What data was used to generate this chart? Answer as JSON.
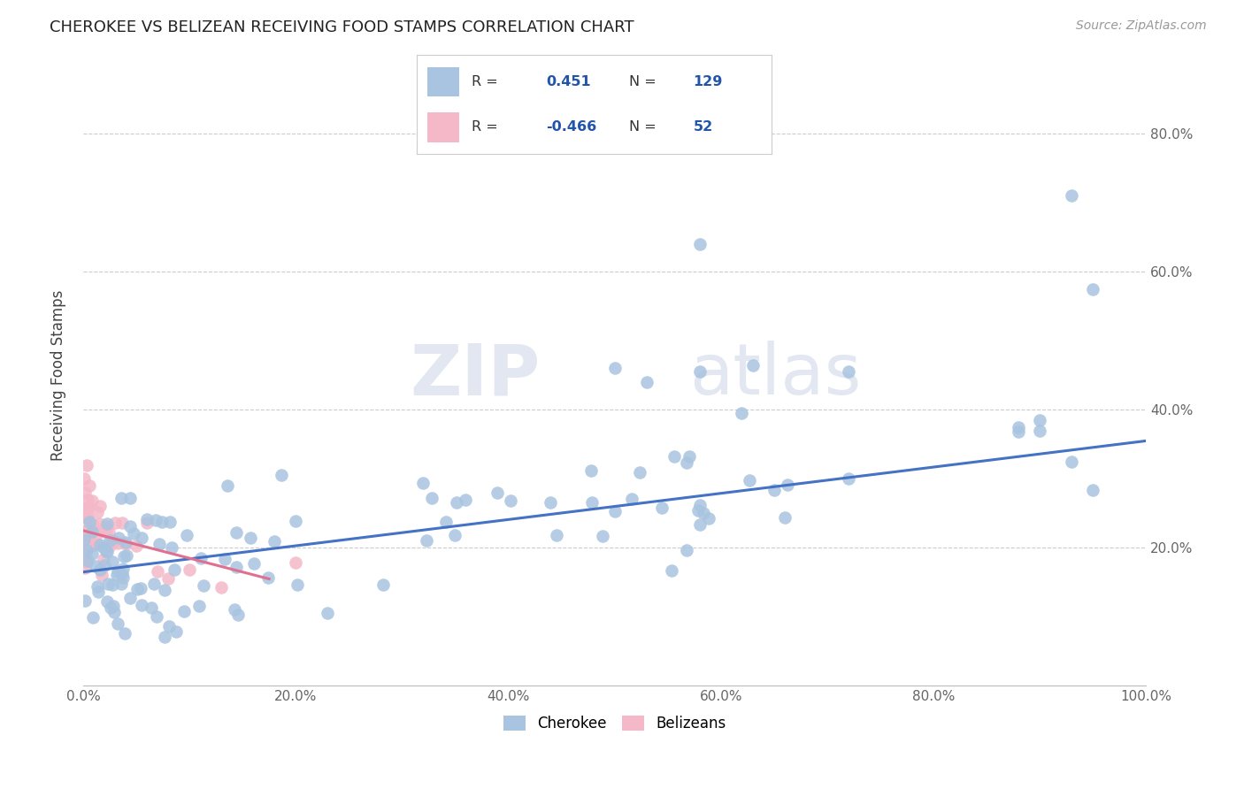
{
  "title": "CHEROKEE VS BELIZEAN RECEIVING FOOD STAMPS CORRELATION CHART",
  "source": "Source: ZipAtlas.com",
  "ylabel": "Receiving Food Stamps",
  "cherokee_R": 0.451,
  "cherokee_N": 129,
  "belizean_R": -0.466,
  "belizean_N": 52,
  "cherokee_color": "#a8c4e0",
  "belizean_color": "#f4b8c8",
  "cherokee_line_color": "#4472c4",
  "belizean_line_color": "#e07090",
  "watermark_zip": "ZIP",
  "watermark_atlas": "atlas",
  "xlim": [
    0.0,
    1.0
  ],
  "ylim": [
    0.0,
    0.9
  ],
  "xticks": [
    0.0,
    0.2,
    0.4,
    0.6,
    0.8,
    1.0
  ],
  "yticks": [
    0.2,
    0.4,
    0.6,
    0.8
  ],
  "xtick_labels": [
    "0.0%",
    "20.0%",
    "40.0%",
    "60.0%",
    "80.0%",
    "100.0%"
  ],
  "ytick_labels": [
    "20.0%",
    "40.0%",
    "60.0%",
    "80.0%"
  ],
  "legend_label_cherokee": "Cherokee",
  "legend_label_belizean": "Belizeans",
  "cherokee_trend_x": [
    0.0,
    1.0
  ],
  "cherokee_trend_y": [
    0.165,
    0.355
  ],
  "belizean_trend_x": [
    0.0,
    0.175
  ],
  "belizean_trend_y": [
    0.225,
    0.155
  ]
}
